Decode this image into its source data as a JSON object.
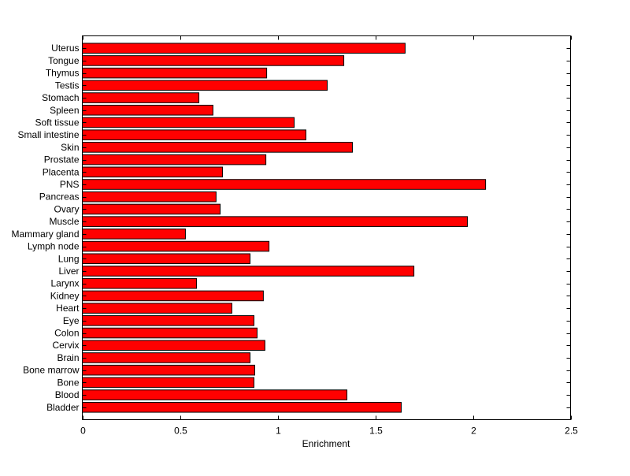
{
  "chart_data": {
    "type": "bar",
    "orientation": "horizontal",
    "title": "",
    "xlabel": "Enrichment",
    "ylabel": "",
    "xlim": [
      0,
      2.5
    ],
    "xticks": [
      0,
      0.5,
      1,
      1.5,
      2,
      2.5
    ],
    "xtick_labels": [
      "0",
      "0.5",
      "1",
      "1.5",
      "2",
      "2.5"
    ],
    "bar_color": "#ff0000",
    "edge_color": "#000000",
    "grid": false,
    "categories": [
      "Bladder",
      "Blood",
      "Bone",
      "Bone marrow",
      "Brain",
      "Cervix",
      "Colon",
      "Eye",
      "Heart",
      "Kidney",
      "Larynx",
      "Liver",
      "Lung",
      "Lymph node",
      "Mammary gland",
      "Muscle",
      "Ovary",
      "Pancreas",
      "PNS",
      "Placenta",
      "Prostate",
      "Skin",
      "Small intestine",
      "Soft tissue",
      "Spleen",
      "Stomach",
      "Testis",
      "Thymus",
      "Tongue",
      "Uterus"
    ],
    "values": [
      1.633,
      1.355,
      0.879,
      0.883,
      0.859,
      0.935,
      0.895,
      0.879,
      0.766,
      0.927,
      0.585,
      1.698,
      0.859,
      0.956,
      0.528,
      1.972,
      0.706,
      0.685,
      2.065,
      0.718,
      0.94,
      1.383,
      1.145,
      1.085,
      0.669,
      0.597,
      1.254,
      0.944,
      1.339,
      1.653
    ]
  }
}
